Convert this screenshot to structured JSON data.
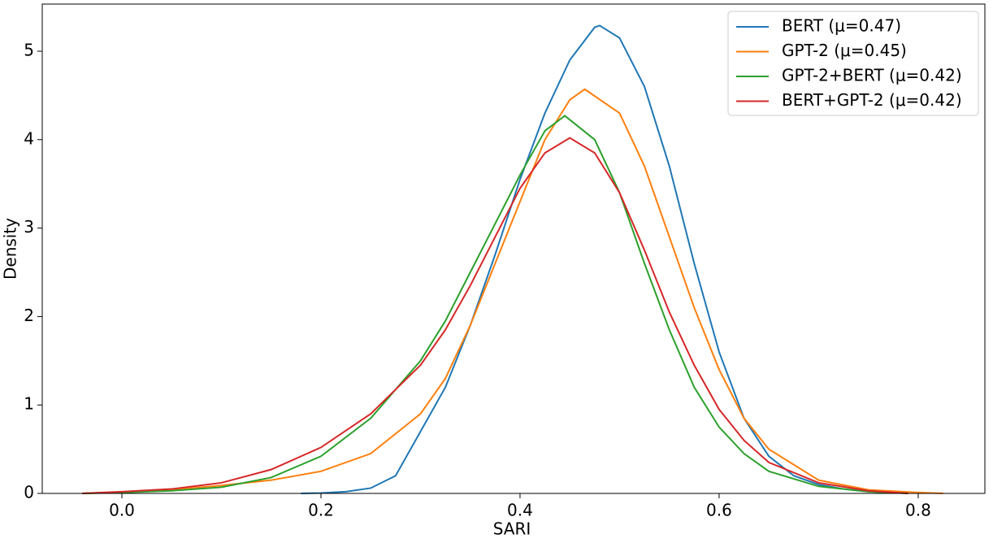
{
  "chart_data": {
    "type": "line",
    "xlabel": "SARI",
    "ylabel": "Density",
    "xlim": [
      -0.08,
      0.867
    ],
    "ylim": [
      0,
      5.533
    ],
    "xticks": [
      {
        "value": 0,
        "label": "0.0"
      },
      0.2,
      0.4,
      0.6,
      0.8
    ],
    "yticks": [
      0,
      1,
      2,
      3,
      4,
      5
    ],
    "legend": "upper right",
    "series": [
      {
        "name": "BERT (μ=0.47)",
        "color": "#1f77b4",
        "x": [
          0.18,
          0.2,
          0.225,
          0.25,
          0.275,
          0.3,
          0.325,
          0.35,
          0.375,
          0.4,
          0.425,
          0.45,
          0.475,
          0.48,
          0.5,
          0.525,
          0.55,
          0.575,
          0.6,
          0.625,
          0.65,
          0.675,
          0.7,
          0.725,
          0.75,
          0.79
        ],
        "values": [
          0,
          0.005,
          0.02,
          0.06,
          0.2,
          0.7,
          1.2,
          1.9,
          2.7,
          3.55,
          4.3,
          4.9,
          5.27,
          5.29,
          5.15,
          4.6,
          3.7,
          2.6,
          1.6,
          0.85,
          0.42,
          0.2,
          0.1,
          0.05,
          0.02,
          0.005
        ]
      },
      {
        "name": "GPT-2 (μ=0.45)",
        "color": "#ff7f0e",
        "x": [
          -0.04,
          0.0,
          0.05,
          0.1,
          0.15,
          0.2,
          0.25,
          0.3,
          0.325,
          0.35,
          0.375,
          0.4,
          0.425,
          0.45,
          0.465,
          0.5,
          0.525,
          0.55,
          0.575,
          0.6,
          0.625,
          0.65,
          0.7,
          0.75,
          0.8,
          0.825
        ],
        "values": [
          0,
          0.01,
          0.04,
          0.09,
          0.15,
          0.25,
          0.45,
          0.9,
          1.3,
          1.9,
          2.6,
          3.3,
          4.0,
          4.45,
          4.57,
          4.3,
          3.7,
          2.9,
          2.1,
          1.4,
          0.85,
          0.5,
          0.15,
          0.04,
          0.01,
          0
        ]
      },
      {
        "name": "GPT-2+BERT (μ=0.42)",
        "color": "#2ca02c",
        "x": [
          -0.04,
          0.0,
          0.05,
          0.1,
          0.15,
          0.2,
          0.25,
          0.3,
          0.325,
          0.35,
          0.375,
          0.4,
          0.425,
          0.445,
          0.475,
          0.5,
          0.525,
          0.55,
          0.575,
          0.6,
          0.625,
          0.65,
          0.7,
          0.75,
          0.79
        ],
        "values": [
          0,
          0.01,
          0.03,
          0.07,
          0.18,
          0.42,
          0.85,
          1.5,
          1.95,
          2.5,
          3.05,
          3.6,
          4.1,
          4.27,
          4.0,
          3.4,
          2.6,
          1.85,
          1.2,
          0.75,
          0.45,
          0.25,
          0.08,
          0.02,
          0
        ]
      },
      {
        "name": "BERT+GPT-2 (μ=0.42)",
        "color": "#d62728",
        "x": [
          -0.04,
          0.0,
          0.05,
          0.1,
          0.15,
          0.2,
          0.25,
          0.3,
          0.325,
          0.35,
          0.375,
          0.4,
          0.425,
          0.45,
          0.475,
          0.5,
          0.525,
          0.55,
          0.575,
          0.6,
          0.625,
          0.65,
          0.7,
          0.75,
          0.79
        ],
        "values": [
          0,
          0.02,
          0.05,
          0.12,
          0.27,
          0.52,
          0.9,
          1.45,
          1.85,
          2.35,
          2.9,
          3.45,
          3.85,
          4.02,
          3.85,
          3.4,
          2.75,
          2.05,
          1.45,
          0.95,
          0.6,
          0.35,
          0.12,
          0.03,
          0
        ]
      }
    ]
  }
}
